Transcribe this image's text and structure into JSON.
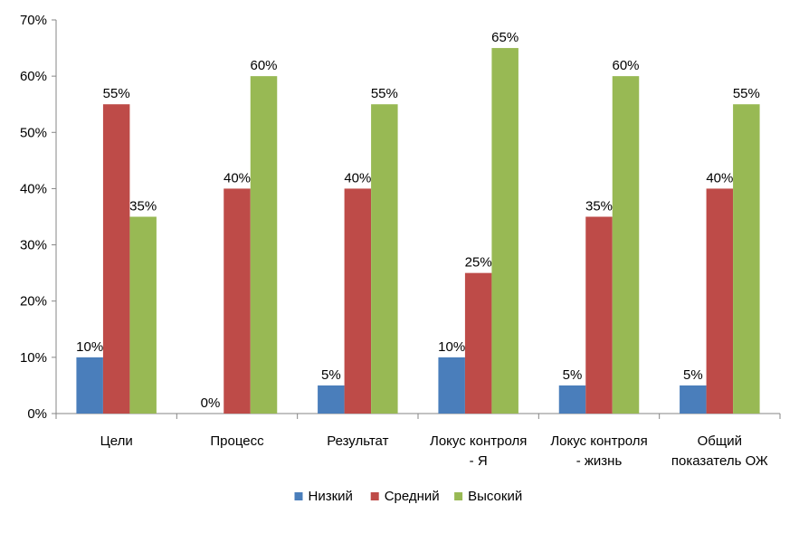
{
  "chart_data": {
    "type": "bar",
    "categories": [
      [
        "Цели"
      ],
      [
        "Процесс"
      ],
      [
        "Результат"
      ],
      [
        "Локус контроля",
        "- Я"
      ],
      [
        "Локус контроля",
        "- жизнь"
      ],
      [
        "Общий",
        "показатель ОЖ"
      ]
    ],
    "series": [
      {
        "name": "Низкий",
        "color": "#4a7ebb",
        "values": [
          10,
          0,
          5,
          10,
          5,
          5
        ]
      },
      {
        "name": "Средний",
        "color": "#be4b48",
        "values": [
          55,
          40,
          40,
          25,
          35,
          40
        ]
      },
      {
        "name": "Высокий",
        "color": "#98b954",
        "values": [
          35,
          60,
          55,
          65,
          60,
          55
        ]
      }
    ],
    "ylim": [
      0,
      70
    ],
    "yticks": [
      0,
      10,
      20,
      30,
      40,
      50,
      60,
      70
    ],
    "tick_suffix": "%",
    "grid": false,
    "legend_position": "bottom"
  }
}
